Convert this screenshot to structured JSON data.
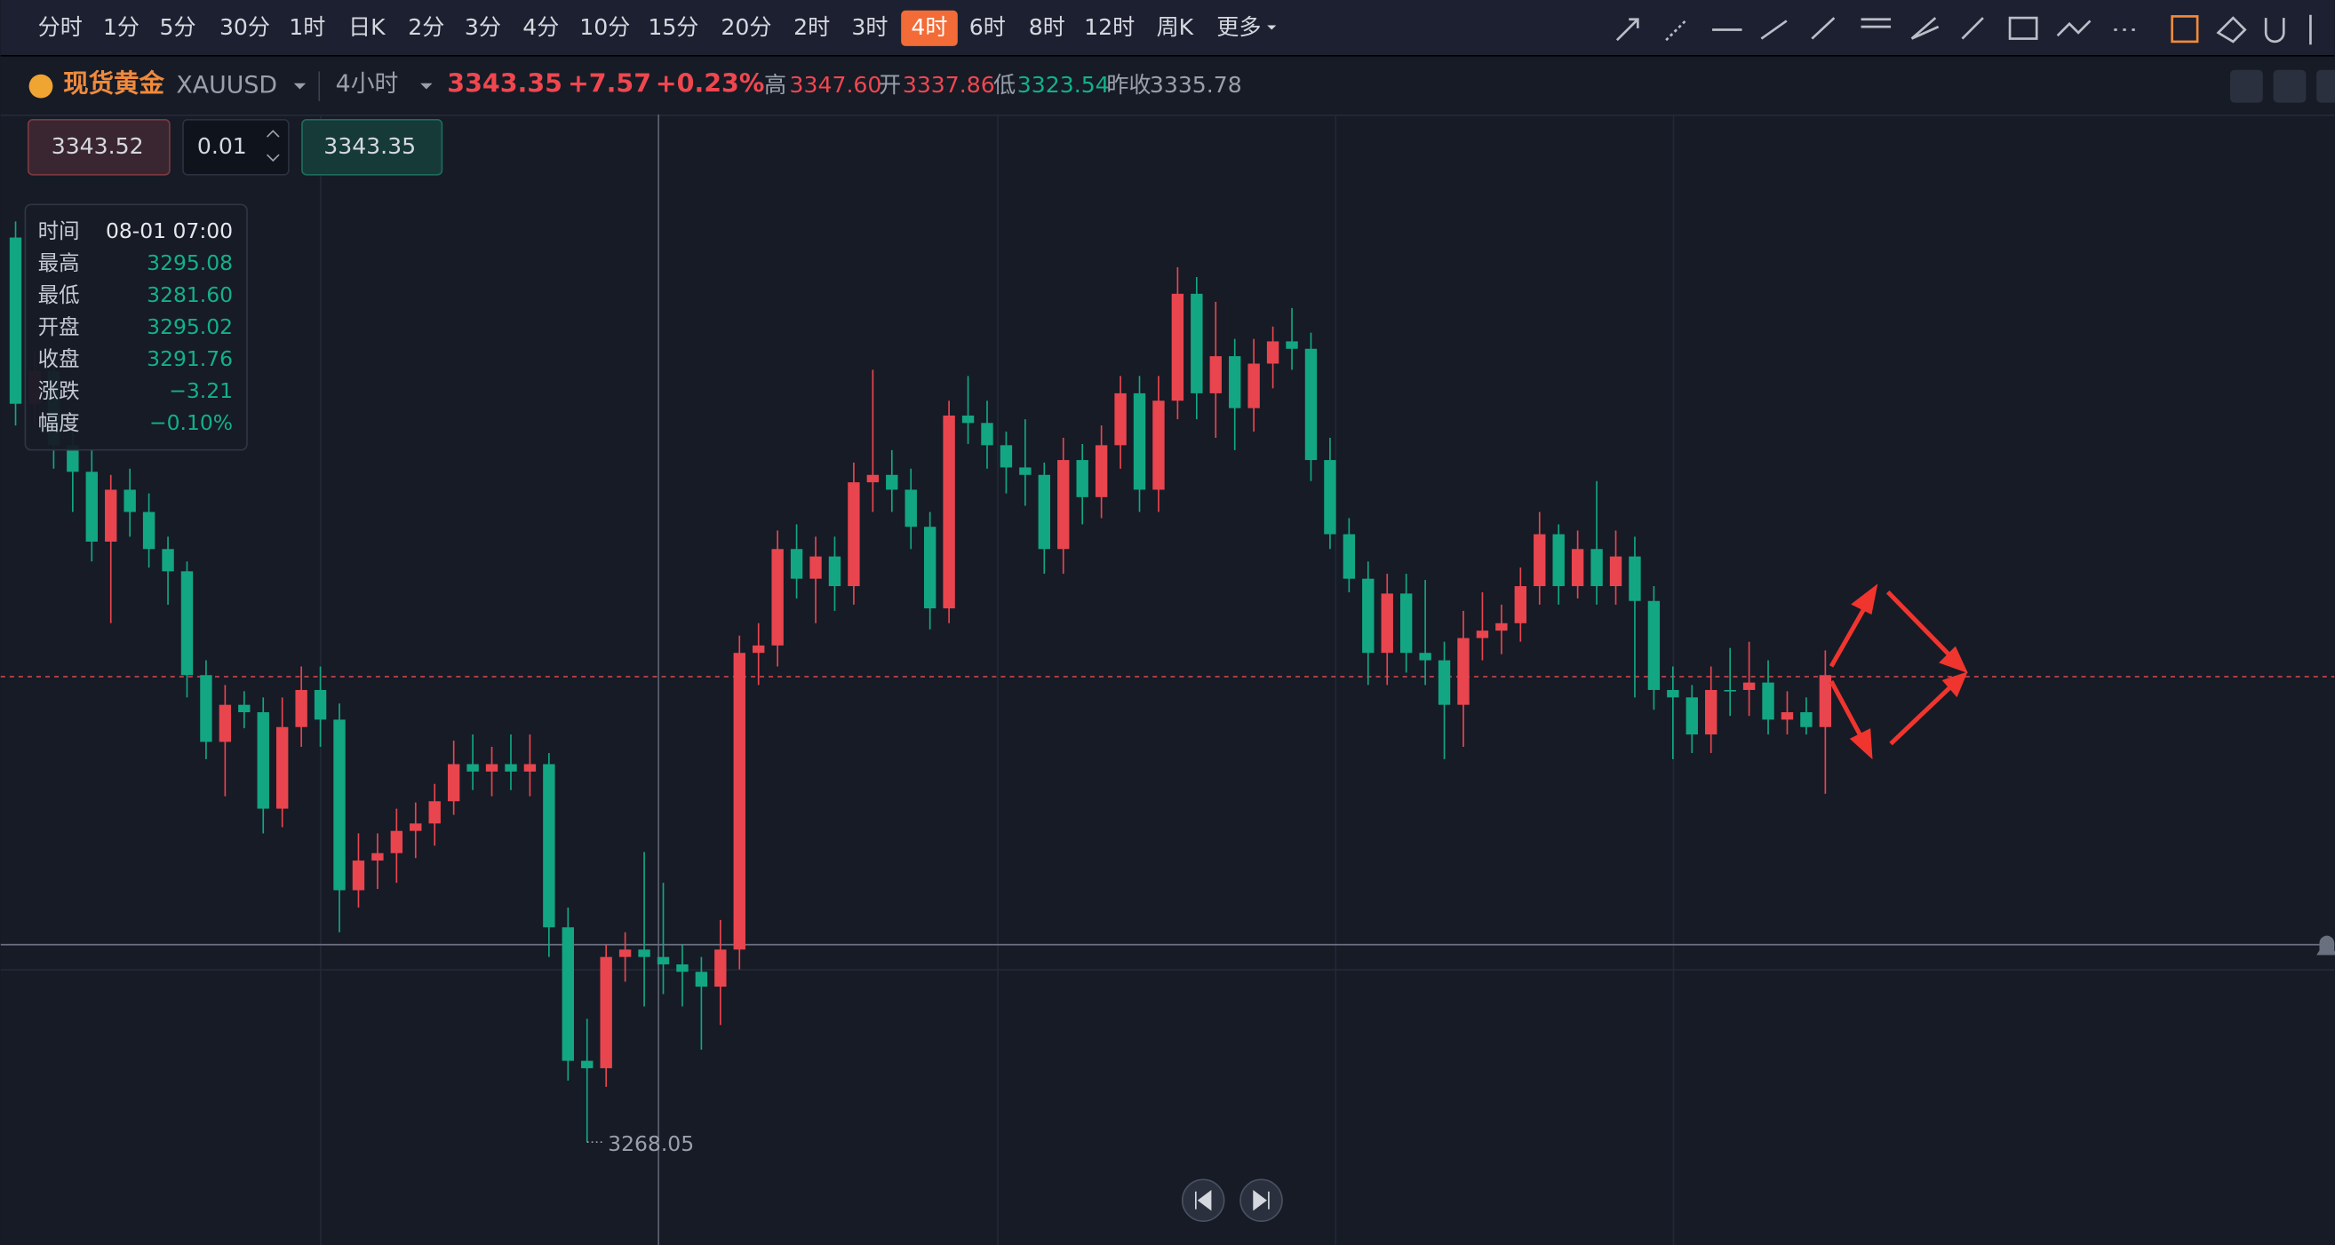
{
  "toolbar": {
    "periods": [
      "分时",
      "1分",
      "5分",
      "30分",
      "1时",
      "日K",
      "2分",
      "3分",
      "4分",
      "10分",
      "15分",
      "20分",
      "2时",
      "3时",
      "4时",
      "6时",
      "8时",
      "12时",
      "周K",
      "更多"
    ],
    "active": 14
  },
  "symbol": {
    "name": "现货黄金",
    "code": "XAUUSD",
    "period": "4小时",
    "price": "3343.35",
    "change": "+7.57",
    "change_pct": "+0.23%",
    "high_label": "高",
    "high": "3347.60",
    "open_label": "开",
    "open": "3337.86",
    "low_label": "低",
    "low": "3323.54",
    "prev_label": "昨收",
    "prev": "3335.78"
  },
  "trade": {
    "sell": "3343.52",
    "qty": "0.01",
    "buy": "3343.35"
  },
  "tooltip": {
    "rows": [
      [
        "时间",
        "08-01 07:00"
      ],
      [
        "最高",
        "3295.08"
      ],
      [
        "最低",
        "3281.60"
      ],
      [
        "开盘",
        "3295.02"
      ],
      [
        "收盘",
        "3291.76"
      ],
      [
        "涨跌",
        "−3.21"
      ],
      [
        "幅度",
        "−0.10%"
      ]
    ]
  },
  "chart": {
    "ylim": [
      3251.4,
      3434.3
    ],
    "price_line": 3343.35,
    "alert_line": 3300,
    "low_mark": {
      "index": 30,
      "label": "3268.05"
    },
    "candles": {
      "first_open": 3414.4,
      "close": [
        3387.5,
        3392.8,
        3380.8,
        3376.5,
        3365.2,
        3373.6,
        3370,
        3364,
        3360.4,
        3343.6,
        3332.8,
        3338.8,
        3337.6,
        3322,
        3335.2,
        3341.2,
        3336.4,
        3308.8,
        3313.6,
        3314.8,
        3318.4,
        3319.6,
        3323.2,
        3329.2,
        3328,
        3329.2,
        3328,
        3329.2,
        3302.8,
        3281.2,
        3280,
        3298,
        3299.2,
        3298,
        3296.8,
        3295.6,
        3293.2,
        3299.2,
        3347.2,
        3348.4,
        3364,
        3359.2,
        3362.8,
        3358,
        3374.8,
        3376,
        3373.6,
        3367.6,
        3354.4,
        3385.6,
        3384.4,
        3380.8,
        3377.2,
        3376,
        3364,
        3378.4,
        3372.4,
        3380.8,
        3389.2,
        3373.6,
        3388,
        3405.3,
        3389.2,
        3395.2,
        3386.8,
        3394,
        3397.6,
        3396.4,
        3378.4,
        3366.4,
        3359.2,
        3347.2,
        3356.8,
        3347.2,
        3346,
        3338.8,
        3349.6,
        3350.8,
        3352,
        3358,
        3366.4,
        3358,
        3364,
        3358,
        3362.8,
        3355.6,
        3341.2,
        3340,
        3334,
        3341.2,
        3341.2,
        3342.4,
        3336.4,
        3337.6,
        3335.2,
        3343.6
      ],
      "high": [
        3417,
        3396,
        3396,
        3384,
        3380,
        3376,
        3377,
        3373,
        3366,
        3362,
        3346,
        3342,
        3341,
        3340,
        3340,
        3345,
        3345,
        3339,
        3318,
        3318,
        3322,
        3323,
        3326,
        3333,
        3334,
        3332,
        3334,
        3334,
        3331,
        3306,
        3288,
        3300,
        3302,
        3315,
        3310,
        3300,
        3298,
        3304,
        3350,
        3352,
        3367,
        3368,
        3366,
        3366,
        3378,
        3393,
        3380,
        3377,
        3370,
        3388,
        3392,
        3388,
        3383,
        3385,
        3378,
        3382,
        3381,
        3384,
        3392,
        3392,
        3392,
        3409.6,
        3408,
        3404,
        3398,
        3398,
        3400,
        3403,
        3399,
        3382,
        3369,
        3362,
        3360,
        3360,
        3359,
        3349,
        3354,
        3357,
        3355,
        3361,
        3370,
        3368,
        3367,
        3375,
        3367,
        3366,
        3358,
        3345,
        3342,
        3345,
        3348,
        3349,
        3346,
        3341,
        3340,
        3347.6
      ],
      "low": [
        3384,
        3384,
        3377,
        3370,
        3362,
        3352,
        3366,
        3361,
        3355,
        3340,
        3330,
        3324,
        3335,
        3318,
        3319,
        3332,
        3332,
        3302,
        3306,
        3309,
        3310,
        3314,
        3316,
        3321,
        3325,
        3324,
        3325,
        3324,
        3298,
        3278,
        3268.05,
        3277,
        3294,
        3290,
        3292,
        3290,
        3283,
        3287,
        3296,
        3342,
        3345,
        3356,
        3352,
        3354,
        3355,
        3370,
        3370,
        3364,
        3351,
        3352,
        3381,
        3377,
        3373,
        3371,
        3360,
        3360,
        3368,
        3369,
        3377,
        3370,
        3370,
        3385,
        3385,
        3382,
        3380,
        3383,
        3390,
        3393,
        3375,
        3364,
        3357,
        3342,
        3342,
        3344,
        3342,
        3330,
        3332,
        3346,
        3347,
        3349,
        3355,
        3355,
        3356,
        3355,
        3355,
        3340,
        3338,
        3330,
        3331,
        3331,
        3337,
        3337,
        3334,
        3334,
        3334,
        3324.4
      ]
    }
  }
}
